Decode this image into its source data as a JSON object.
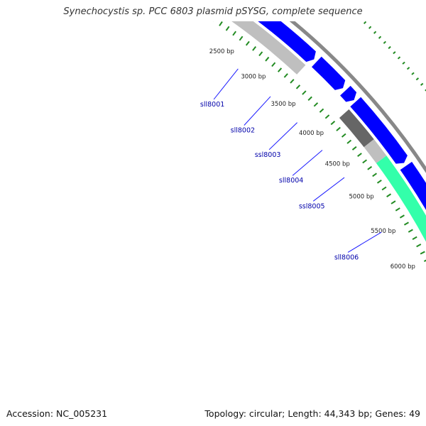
{
  "title": "Synechocystis sp. PCC 6803 plasmid pSYSG, complete sequence",
  "footer": {
    "accession": "Accession: NC_005231",
    "topology": "Topology: circular; Length: 44,343 bp; Genes: 49"
  },
  "colors": {
    "gene_forward": "#0000ff",
    "gene_light_grey": "#bfbfbf",
    "gene_dark_grey": "#666666",
    "gene_teal": "#33ffaa",
    "backbone": "#888888",
    "tick_green": "#228b22",
    "gene_label": "#0000aa"
  },
  "bp_ticks": [
    "2500 bp",
    "3000 bp",
    "3500 bp",
    "4000 bp",
    "4500 bp",
    "5000 bp",
    "5500 bp",
    "6000 bp"
  ],
  "gene_labels": [
    "sll8001",
    "sll8002",
    "ssl8003",
    "sll8004",
    "ssl8005",
    "sll8006"
  ]
}
